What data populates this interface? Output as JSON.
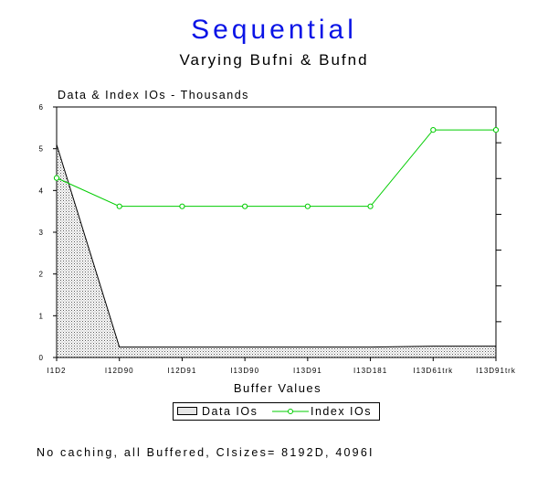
{
  "chart_data": {
    "type": "line",
    "title": "Sequential",
    "subtitle": "Varying Bufni & Bufnd",
    "ylabel": "Data & Index IOs - Thousands",
    "xlabel": "Buffer Values",
    "categories": [
      "I1D2",
      "I12D90",
      "I12D91",
      "I13D90",
      "I13D91",
      "I13D181",
      "I13D61trk",
      "I13D91trk"
    ],
    "ylim": [
      0,
      6
    ],
    "yticks": [
      0,
      1,
      2,
      3,
      4,
      5,
      6
    ],
    "series": [
      {
        "name": "Data IOs",
        "style": "area",
        "color": "#000000",
        "values": [
          5.1,
          0.25,
          0.25,
          0.25,
          0.25,
          0.25,
          0.27,
          0.27
        ]
      },
      {
        "name": "Index IOs",
        "style": "line-markers",
        "color": "#00cc00",
        "values": [
          4.3,
          3.62,
          3.62,
          3.62,
          3.62,
          3.62,
          5.45,
          5.45
        ]
      }
    ],
    "legend": {
      "placement": "bottom-center"
    },
    "grid": false
  },
  "footnote": "No caching, all Buffered, CIsizes= 8192D, 4096I"
}
